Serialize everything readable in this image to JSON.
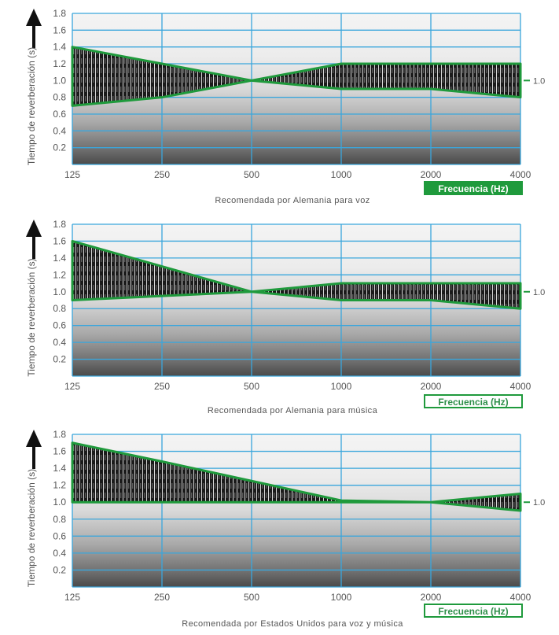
{
  "chart_data": [
    {
      "type": "area",
      "title": "Recomendada por Alemania para voz",
      "xlabel": "Frecuencia (Hz)",
      "ylabel": "Tiempo de reverberación (s)",
      "ylim": [
        0,
        1.8
      ],
      "x_ticks": [
        "125",
        "250",
        "500",
        "1000",
        "2000",
        "4000"
      ],
      "y_ticks": [
        "0.2",
        "0.4",
        "0.6",
        "0.8",
        "1.0",
        "1.2",
        "1.4",
        "1.6",
        "1.8"
      ],
      "reference_label": "1.0",
      "series": [
        {
          "name": "upper",
          "values": [
            1.4,
            1.2,
            1.0,
            1.2,
            1.2,
            1.2
          ]
        },
        {
          "name": "lower",
          "values": [
            0.7,
            0.8,
            1.0,
            0.9,
            0.9,
            0.8
          ]
        }
      ],
      "xlabel_style": "solid",
      "grid": true
    },
    {
      "type": "area",
      "title": "Recomendada por Alemania para música",
      "xlabel": "Frecuencia (Hz)",
      "ylabel": "Tiempo de reverberación (s)",
      "ylim": [
        0,
        1.8
      ],
      "x_ticks": [
        "125",
        "250",
        "500",
        "1000",
        "2000",
        "4000"
      ],
      "y_ticks": [
        "0.2",
        "0.4",
        "0.6",
        "0.8",
        "1.0",
        "1.2",
        "1.4",
        "1.6",
        "1.8"
      ],
      "reference_label": "1.0",
      "series": [
        {
          "name": "upper",
          "values": [
            1.6,
            1.3,
            1.0,
            1.1,
            1.1,
            1.1
          ]
        },
        {
          "name": "lower",
          "values": [
            0.9,
            0.95,
            1.0,
            0.9,
            0.9,
            0.8
          ]
        }
      ],
      "xlabel_style": "outline",
      "grid": true
    },
    {
      "type": "area",
      "title": "Recomendada por Estados Unidos para voz y música",
      "xlabel": "Frecuencia (Hz)",
      "ylabel": "Tiempo de reverberación (s)",
      "ylim": [
        0,
        1.8
      ],
      "x_ticks": [
        "125",
        "250",
        "500",
        "1000",
        "2000",
        "4000"
      ],
      "y_ticks": [
        "0.2",
        "0.4",
        "0.6",
        "0.8",
        "1.0",
        "1.2",
        "1.4",
        "1.6",
        "1.8"
      ],
      "reference_label": "1.0",
      "series": [
        {
          "name": "upper",
          "values": [
            1.7,
            1.48,
            1.25,
            1.02,
            1.0,
            1.1
          ]
        },
        {
          "name": "lower",
          "values": [
            1.0,
            1.0,
            1.0,
            1.0,
            1.0,
            0.9
          ]
        }
      ],
      "xlabel_style": "outline",
      "grid": true
    }
  ],
  "colors": {
    "grid": "#3aa6dc",
    "band_border": "#1f9a3c",
    "band_fill": "#1a1a1a",
    "label_bg": "#1f9a3c"
  }
}
